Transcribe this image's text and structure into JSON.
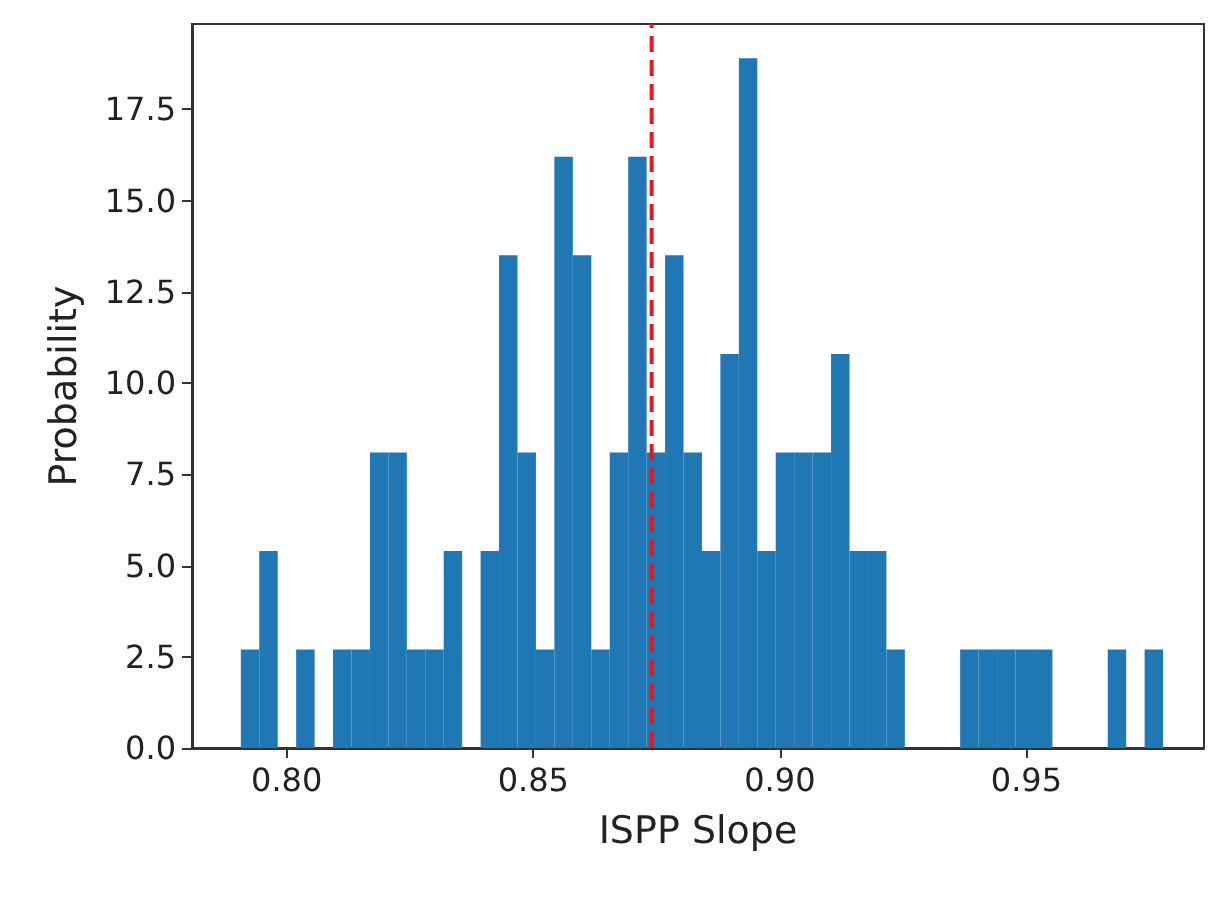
{
  "chart_data": {
    "type": "histogram",
    "xlabel": "ISPP Slope",
    "ylabel": "Probability",
    "color": "#1f77b4",
    "bins": [
      0.7907,
      0.79444,
      0.79818,
      0.80192,
      0.80566,
      0.8094,
      0.81314,
      0.81688,
      0.82062,
      0.82436,
      0.8281,
      0.83184,
      0.83558,
      0.83932,
      0.84306,
      0.8468,
      0.85054,
      0.85428,
      0.85802,
      0.86176,
      0.8655,
      0.86924,
      0.87298,
      0.87672,
      0.88046,
      0.8842,
      0.88794,
      0.89168,
      0.89542,
      0.89916,
      0.9029,
      0.90664,
      0.91038,
      0.91412,
      0.91786,
      0.9216,
      0.92534,
      0.92908,
      0.93282,
      0.93656,
      0.9403,
      0.94404,
      0.94778,
      0.95152,
      0.95526,
      0.959,
      0.96274,
      0.96648,
      0.97022,
      0.97396,
      0.9777
    ],
    "values": [
      2.7,
      5.4,
      0,
      2.7,
      0,
      2.7,
      2.7,
      8.1,
      8.1,
      2.7,
      2.7,
      5.4,
      0,
      5.4,
      13.5,
      8.1,
      2.7,
      16.2,
      13.5,
      2.7,
      8.1,
      16.2,
      8.1,
      13.5,
      8.1,
      5.4,
      10.8,
      18.9,
      5.4,
      8.1,
      8.1,
      8.1,
      10.8,
      5.4,
      5.4,
      2.7,
      0,
      0,
      0,
      2.7,
      2.7,
      2.7,
      2.7,
      2.7,
      0,
      0,
      0,
      2.7,
      0,
      2.7
    ],
    "xlim": [
      0.7808,
      0.986
    ],
    "ylim": [
      0,
      19.84
    ],
    "xticks": [
      {
        "value": 0.8,
        "label": "0.80"
      },
      {
        "value": 0.85,
        "label": "0.85"
      },
      {
        "value": 0.9,
        "label": "0.90"
      },
      {
        "value": 0.95,
        "label": "0.95"
      }
    ],
    "yticks": [
      {
        "value": 0,
        "label": "0.0"
      },
      {
        "value": 2.5,
        "label": "2.5"
      },
      {
        "value": 5,
        "label": "5.0"
      },
      {
        "value": 7.5,
        "label": "7.5"
      },
      {
        "value": 10,
        "label": "10.0"
      },
      {
        "value": 12.5,
        "label": "12.5"
      },
      {
        "value": 15,
        "label": "15.0"
      },
      {
        "value": 17.5,
        "label": "17.5"
      }
    ],
    "ref_lines": [
      {
        "axis": "x",
        "value": 0.874,
        "color": "#e8191a",
        "line_style": "dashed"
      }
    ],
    "grid": false
  }
}
